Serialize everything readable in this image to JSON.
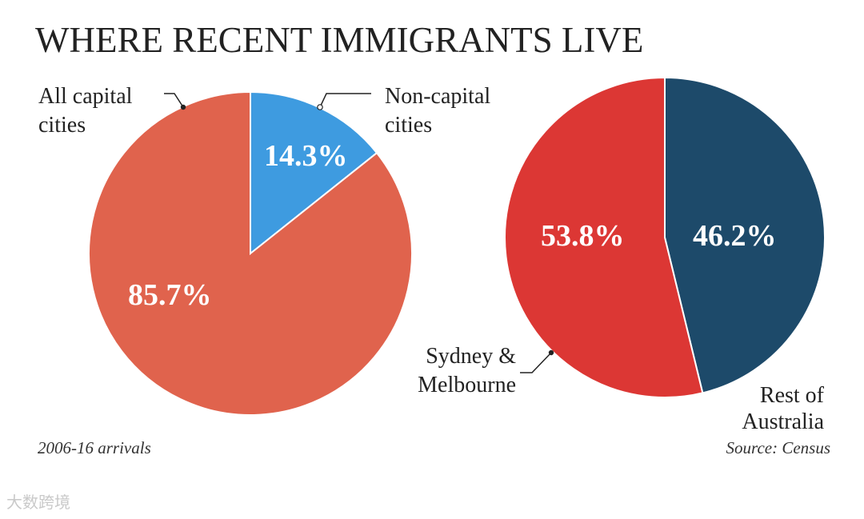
{
  "title": "WHERE RECENT IMMIGRANTS LIVE",
  "chart_data": [
    {
      "type": "pie",
      "labels": [
        "All capital cities",
        "Non-capital cities"
      ],
      "label_lines": [
        [
          "All capital",
          "cities"
        ],
        [
          "Non-capital",
          "cities"
        ]
      ],
      "values": [
        85.7,
        14.3
      ],
      "value_labels": [
        "85.7%",
        "14.3%"
      ],
      "colors": [
        "#e0634d",
        "#3e9be0"
      ]
    },
    {
      "type": "pie",
      "labels": [
        "Sydney & Melbourne",
        "Rest of Australia"
      ],
      "label_lines": [
        [
          "Sydney &",
          "Melbourne"
        ],
        [
          "Rest of",
          "Australia"
        ]
      ],
      "values": [
        53.8,
        46.2
      ],
      "value_labels": [
        "53.8%",
        "46.2%"
      ],
      "colors": [
        "#dc3734",
        "#1d4a6a"
      ]
    }
  ],
  "footnote_left": "2006-16 arrivals",
  "footnote_right": "Source: Census",
  "watermark": "大数跨境"
}
